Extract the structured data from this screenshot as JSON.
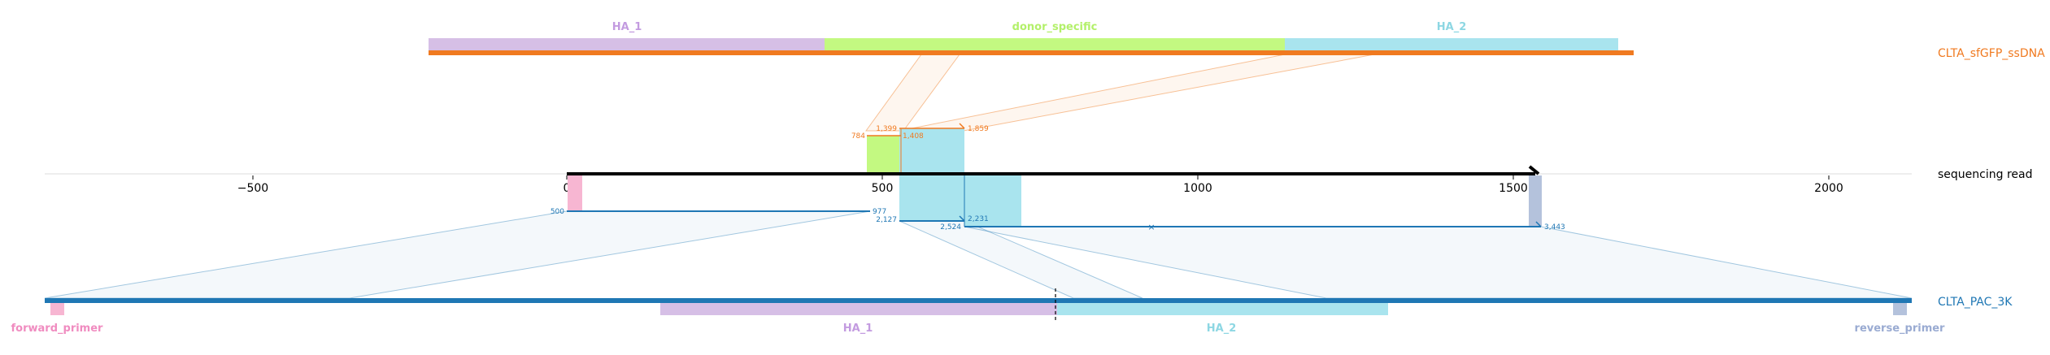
{
  "colors": {
    "ha1": "#d6bfe6",
    "donor": "#c3f981",
    "ha2": "#a9e4ee",
    "orange": "#f07a20",
    "blue": "#1f77b4",
    "pink": "#f7b6d2",
    "grey_blue": "#b4c2dc",
    "ha1_text": "#c39be0",
    "donor_text": "#b3f06a",
    "ha2_text": "#8dd7e3",
    "pink_text": "#f08cc0",
    "grey_text": "#9aabd2"
  },
  "ssdna": {
    "name": "CLTA_sfGFP_ssDNA",
    "features": [
      {
        "id": "ha1",
        "label": "HA_1"
      },
      {
        "id": "donor",
        "label": "donor_specific"
      },
      {
        "id": "ha2",
        "label": "HA_2"
      }
    ]
  },
  "read": {
    "name": "sequencing read",
    "ticks": [
      {
        "value": -500,
        "label": "−500"
      },
      {
        "value": 0,
        "label": "0"
      },
      {
        "value": 500,
        "label": "500"
      },
      {
        "value": 1000,
        "label": "1000"
      },
      {
        "value": 1500,
        "label": "1500"
      },
      {
        "value": 2000,
        "label": "2000"
      }
    ],
    "alignments_top": [
      {
        "label": "784"
      },
      {
        "label": "1,399"
      },
      {
        "label": "1,408"
      },
      {
        "label": "1,859"
      }
    ],
    "alignments_bottom": [
      {
        "label": "500"
      },
      {
        "label": "977"
      },
      {
        "label": "2,127"
      },
      {
        "label": "2,231"
      },
      {
        "label": "2,524"
      },
      {
        "label": "3,443"
      }
    ]
  },
  "target": {
    "name": "CLTA_PAC_3K",
    "features": [
      {
        "id": "fwd",
        "label": "forward_primer"
      },
      {
        "id": "ha1",
        "label": "HA_1"
      },
      {
        "id": "ha2",
        "label": "HA_2"
      },
      {
        "id": "rev",
        "label": "reverse_primer"
      }
    ]
  },
  "chart_data": {
    "type": "diagram",
    "axis": {
      "xlim": [
        -830,
        2130
      ],
      "ticks": [
        -500,
        0,
        500,
        1000,
        1500,
        2000
      ]
    },
    "read_extent": [
      0,
      1545
    ],
    "top_alignment_labels": [
      "784",
      "1,399",
      "1,408",
      "1,859"
    ],
    "bottom_alignment_labels": [
      "500",
      "977",
      "2,127",
      "2,231",
      "2,524",
      "3,443"
    ]
  }
}
